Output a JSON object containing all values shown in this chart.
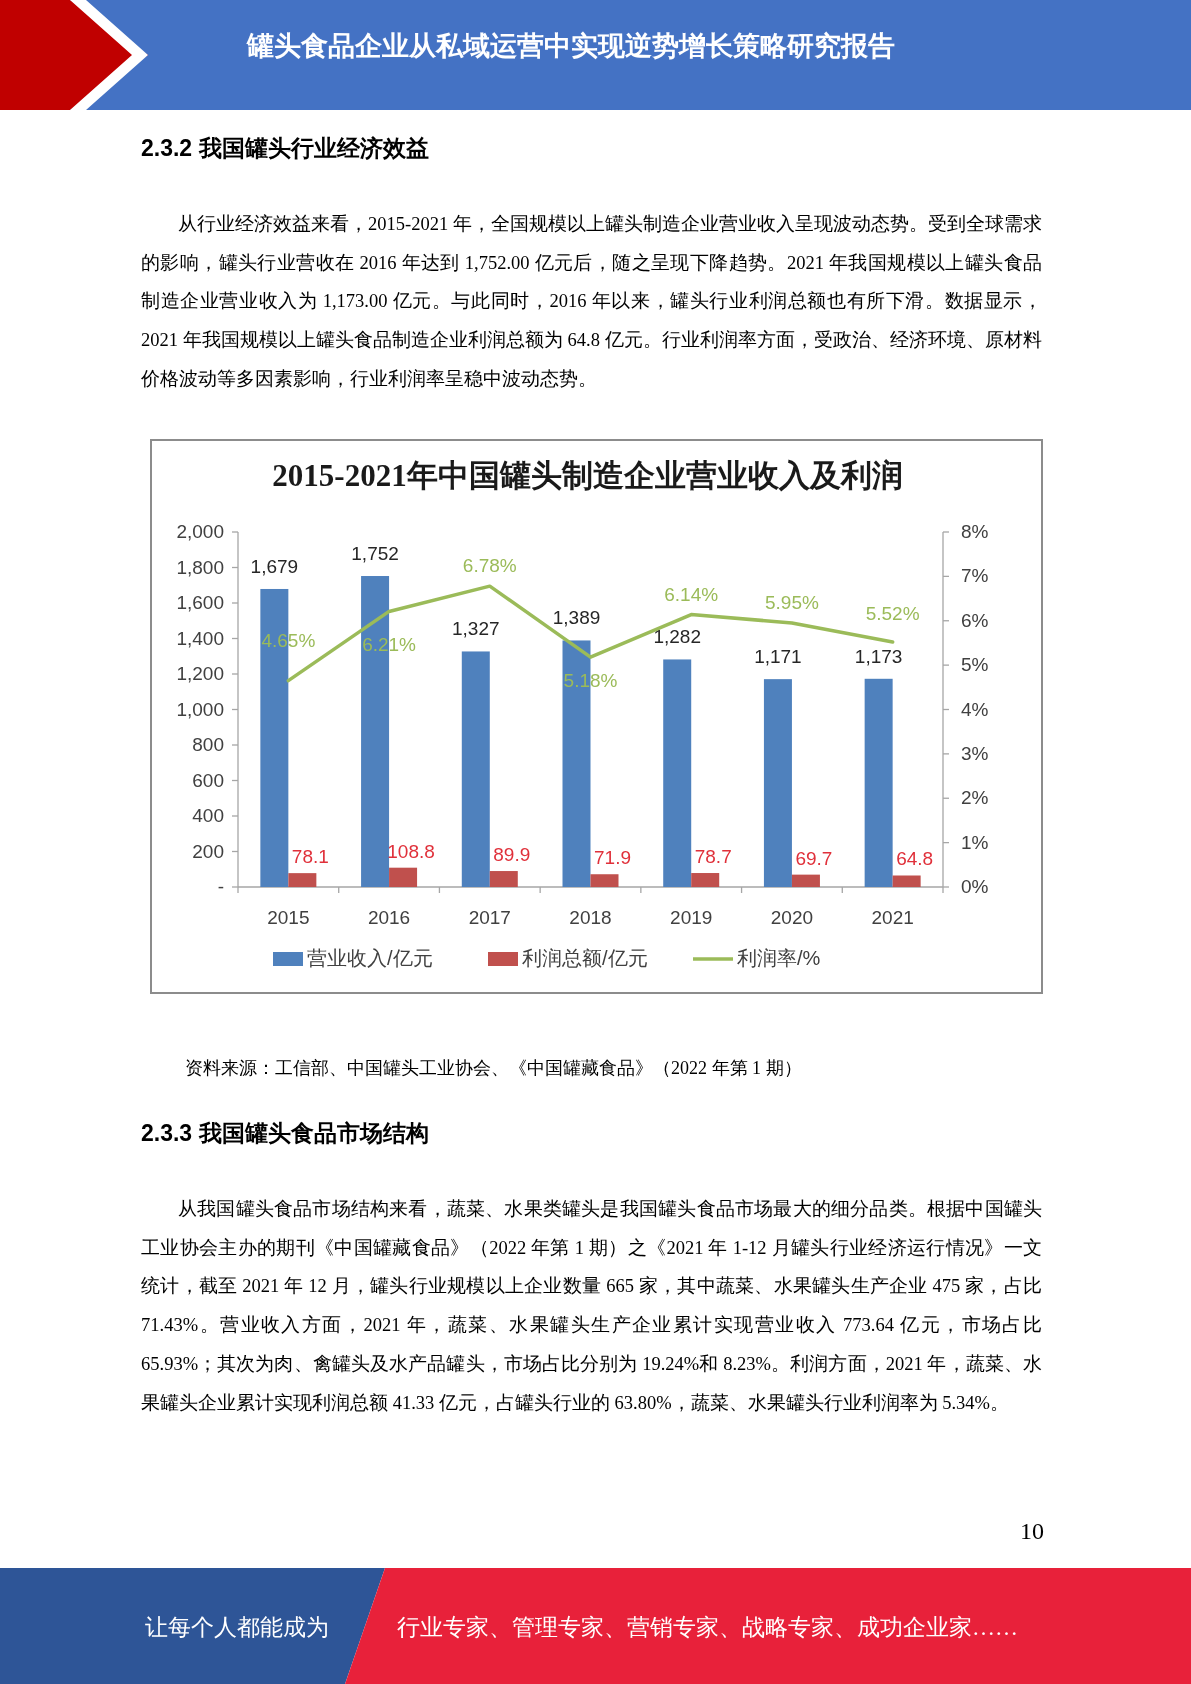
{
  "chart_data": {
    "type": "bar",
    "title": "2015-2021年中国罐头制造企业营业收入及利润",
    "categories": [
      "2015",
      "2016",
      "2017",
      "2018",
      "2019",
      "2020",
      "2021"
    ],
    "series": [
      {
        "name": "营业收入/亿元",
        "color": "#4f81bd",
        "values": [
          1679,
          1752,
          1327,
          1389,
          1282,
          1171,
          1173
        ],
        "value_labels": [
          "1,679",
          "1,752",
          "1,327",
          "1,389",
          "1,282",
          "1,171",
          "1,173"
        ]
      },
      {
        "name": "利润总额/亿元",
        "color": "#c0504d",
        "values": [
          78.1,
          108.8,
          89.9,
          71.9,
          78.7,
          69.7,
          64.8
        ],
        "value_labels": [
          "78.1",
          "108.8",
          "89.9",
          "71.9",
          "78.7",
          "69.7",
          "64.8"
        ]
      },
      {
        "name": "利润率/%",
        "type": "line",
        "axis": "y2",
        "color": "#9bbb59",
        "values": [
          4.65,
          6.21,
          6.78,
          5.18,
          6.14,
          5.95,
          5.52
        ],
        "value_labels": [
          "4.65%",
          "6.21%",
          "6.78%",
          "5.18%",
          "6.14%",
          "5.95%",
          "5.52%"
        ]
      }
    ],
    "ylim": [
      0,
      2000
    ],
    "yticks": [
      {
        "value": 0,
        "label": "-"
      },
      200,
      400,
      600,
      800,
      {
        "value": 1000,
        "label": "1,000"
      },
      {
        "value": 1200,
        "label": "1,200"
      },
      {
        "value": 1400,
        "label": "1,400"
      },
      {
        "value": 1600,
        "label": "1,600"
      },
      {
        "value": 1800,
        "label": "1,800"
      },
      {
        "value": 2000,
        "label": "2,000"
      }
    ],
    "y2lim": [
      0,
      8
    ],
    "y2ticks": [
      {
        "value": 0,
        "label": "0%"
      },
      {
        "value": 1,
        "label": "1%"
      },
      {
        "value": 2,
        "label": "2%"
      },
      {
        "value": 3,
        "label": "3%"
      },
      {
        "value": 4,
        "label": "4%"
      },
      {
        "value": 5,
        "label": "5%"
      },
      {
        "value": 6,
        "label": "6%"
      },
      {
        "value": 7,
        "label": "7%"
      },
      {
        "value": 8,
        "label": "8%"
      }
    ],
    "legend": "bottom",
    "annotations": [
      "罐头食品企业从私域运营中实现逆势增长策略研究报告",
      "2.3.2 我国罐头行业经济效益",
      "从行业经济效益来看，2015-2021 年，全国规模以上罐头制造企业营业收入呈现波动态势。受到全球需求的影响，罐头行业营收在 2016 年达到 1,752.00 亿元后，随之呈现下降趋势。2021 年我国规模以上罐头食品制造企业营业收入为 1,173.00 亿元。与此同时，2016 年以来，罐头行业利润总额也有所下滑。数据显示，2021 年我国规模以上罐头食品制造企业利润总额为 64.8 亿元。行业利润率方面，受政治、经济环境、原材料价格波动等多因素影响，行业利润率呈稳中波动态势。",
      "资料来源：工信部、中国罐头工业协会、《中国罐藏食品》（2022 年第 1 期）",
      "2.3.3 我国罐头食品市场结构",
      "从我国罐头食品市场结构来看，蔬菜、水果类罐头是我国罐头食品市场最大的细分品类。根据中国罐头工业协会主办的期刊《中国罐藏食品》（2022 年第 1 期）之《2021 年 1-12 月罐头行业经济运行情况》一文统计，截至 2021 年 12 月，罐头行业规模以上企业数量 665 家，其中蔬菜、水果罐头生产企业 475 家，占比 71.43%。营业收入方面，2021 年，蔬菜、水果罐头生产企业累计实现营业收入 773.64 亿元，市场占比 65.93%；其次为肉、禽罐头及水产品罐头，市场占比分别为 19.24%和 8.23%。利润方面，2021 年，蔬菜、水果罐头企业累计实现利润总额 41.33 亿元，占罐头行业的 63.80%，蔬菜、水果罐头行业利润率为 5.34%。",
      "10",
      "让每个人都能成为",
      "行业专家、管理专家、营销专家、战略专家、成功企业家……"
    ]
  }
}
